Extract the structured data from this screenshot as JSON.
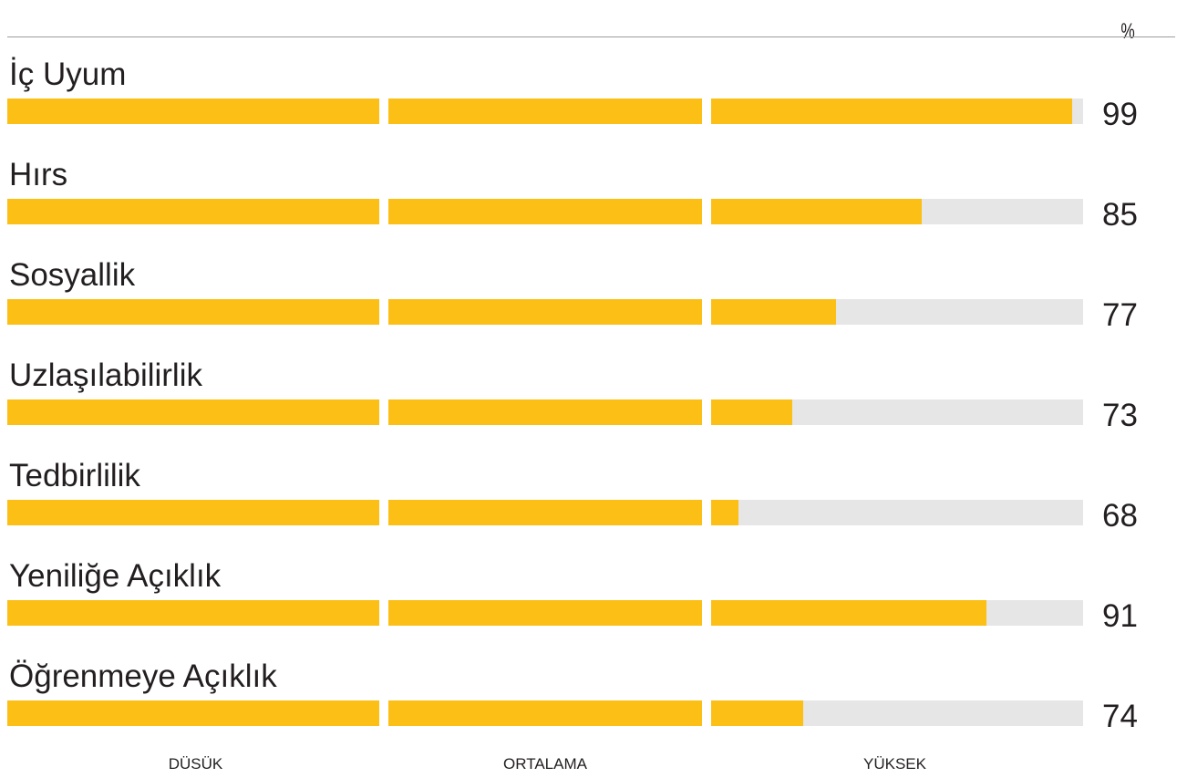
{
  "chart_data": {
    "type": "bar",
    "orientation": "horizontal",
    "unit": "%",
    "categories": [
      "İç Uyum",
      "Hırs",
      "Sosyallik",
      "Uzlaşılabilirlik",
      "Tedbirlilik",
      "Yeniliğe Açıklık",
      "Öğrenmeye Açıklık"
    ],
    "values": [
      99,
      85,
      77,
      73,
      68,
      91,
      74
    ],
    "xlim": [
      0,
      100
    ],
    "bands": [
      {
        "label": "DÜSÜK",
        "from": 0,
        "to": 35
      },
      {
        "label": "ORTALAMA",
        "from": 35,
        "to": 65
      },
      {
        "label": "YÜKSEK",
        "from": 65,
        "to": 100
      }
    ],
    "grid": false,
    "legend": "none",
    "colors": {
      "fill": "#fcbf16",
      "track": "#e6e6e6",
      "separator": "#ffffff",
      "rule": "#9c9c9c",
      "text": "#231f20"
    }
  }
}
